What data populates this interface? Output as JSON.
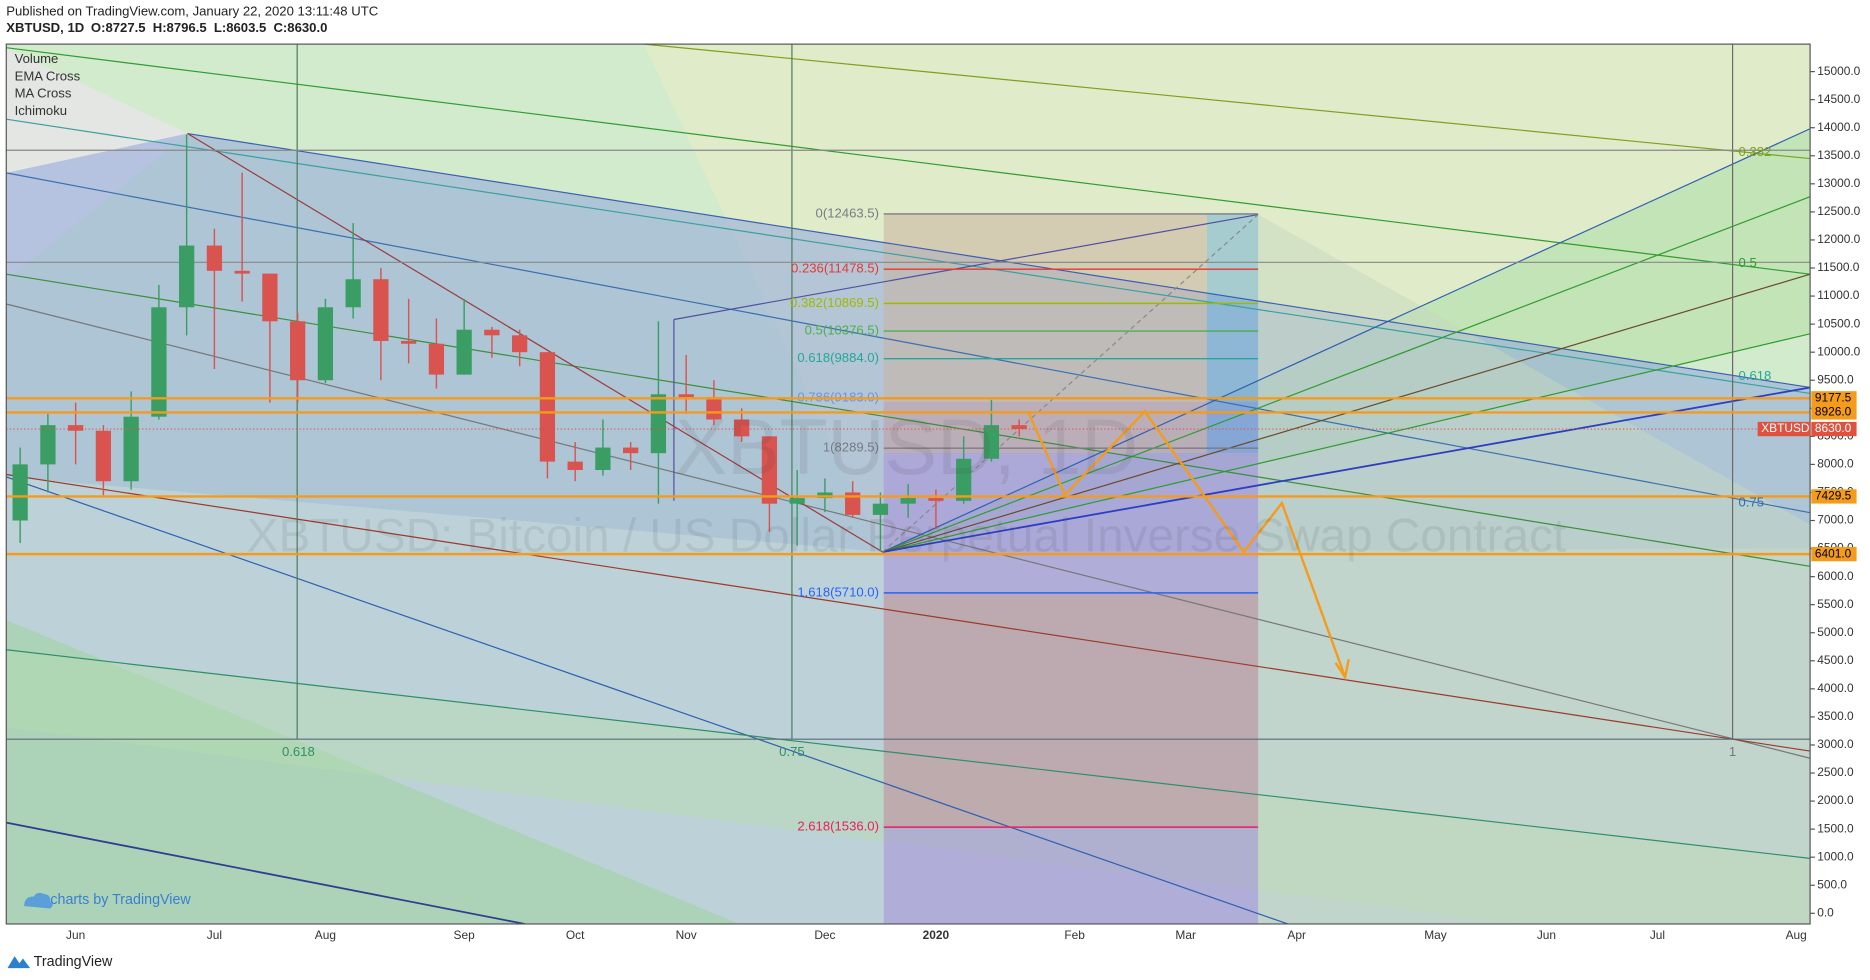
{
  "header": {
    "published": "Published on TradingView.com, January 22, 2020 13:11:48 UTC",
    "symbol": "XBTUSD, 1D",
    "ohlc": [
      "O:8727.5",
      "H:8796.5",
      "L:8603.5",
      "C:8630.0"
    ]
  },
  "footer": {
    "brand": "TradingView",
    "credit": "charts by TradingView"
  },
  "chart_data": {
    "type": "candlestick",
    "watermark": "XBTUSD, 1D",
    "watermark_subtitle": "XBTUSD: Bitcoin / US Dollar Perpetual Inverse Swap Contract",
    "indicators": [
      "Volume",
      "EMA Cross",
      "MA Cross",
      "Ichimoku"
    ],
    "categories": [
      null,
      null,
      "Jun",
      null,
      null,
      null,
      null,
      "Jul",
      null,
      null,
      null,
      "Aug",
      null,
      null,
      null,
      null,
      "Sep",
      null,
      null,
      null,
      "Oct",
      null,
      null,
      null,
      "Nov",
      null,
      null,
      null,
      null,
      "Dec",
      null,
      null,
      null,
      "2020",
      null,
      null,
      null,
      null,
      "Feb",
      null,
      null,
      null,
      "Mar",
      null,
      null,
      null,
      "Apr",
      null,
      null,
      null,
      null,
      "May",
      null,
      null,
      null,
      "Jun",
      null,
      null,
      null,
      "Jul",
      null,
      null,
      null,
      null,
      "Aug"
    ],
    "series": [
      {
        "name": "XBTUSD",
        "up_color": "#3a9e64",
        "down_color": "#d9534f",
        "open": [
          7000,
          8000,
          8700,
          8600,
          7700,
          8850,
          10800,
          11900,
          11450,
          11400,
          10550,
          9500,
          10800,
          11300,
          10200,
          10150,
          9600,
          10400,
          10300,
          10000,
          8050,
          7900,
          8300,
          8200,
          9250,
          9200,
          8800,
          8500,
          7300,
          7400,
          7500,
          7100,
          7300,
          7400,
          7350,
          8100,
          8700
        ],
        "high": [
          8300,
          8900,
          9100,
          8700,
          9300,
          11200,
          13880,
          12200,
          13200,
          11400,
          10700,
          10950,
          12300,
          11500,
          10950,
          10600,
          10950,
          10450,
          10400,
          10000,
          8400,
          8800,
          8400,
          10550,
          9950,
          9500,
          9000,
          8500,
          7900,
          7750,
          7700,
          7500,
          7650,
          7550,
          8500,
          9150,
          8800
        ],
        "low": [
          6600,
          7500,
          8000,
          7450,
          7550,
          8800,
          10300,
          9700,
          10900,
          9100,
          9100,
          9450,
          10600,
          9500,
          9800,
          9350,
          9600,
          9900,
          9750,
          7750,
          7700,
          7800,
          7900,
          7300,
          8900,
          8700,
          8400,
          6800,
          6550,
          7150,
          7050,
          6450,
          7050,
          6850,
          7300,
          8050,
          8500
        ],
        "close": [
          8000,
          8700,
          8600,
          7700,
          8850,
          10800,
          11900,
          11450,
          11400,
          10550,
          9500,
          10800,
          11300,
          10200,
          10150,
          9600,
          10400,
          10300,
          10000,
          8050,
          7900,
          8300,
          8200,
          9250,
          9200,
          8800,
          8500,
          7300,
          7400,
          7500,
          7100,
          7300,
          7400,
          7350,
          8100,
          8700,
          8630
        ]
      }
    ],
    "ylim": [
      -190,
      15490
    ],
    "yticks": [
      {
        "value": 0,
        "label": "0.0"
      },
      {
        "value": 500,
        "label": "500.0"
      },
      {
        "value": 1000,
        "label": "1000.0"
      },
      {
        "value": 1500,
        "label": "1500.0"
      },
      {
        "value": 2000,
        "label": "2000.0"
      },
      {
        "value": 2500,
        "label": "2500.0"
      },
      {
        "value": 3000,
        "label": "3000.0"
      },
      {
        "value": 3500,
        "label": "3500.0"
      },
      {
        "value": 4000,
        "label": "4000.0"
      },
      {
        "value": 4500,
        "label": "4500.0"
      },
      {
        "value": 5000,
        "label": "5000.0"
      },
      {
        "value": 5500,
        "label": "5500.0"
      },
      {
        "value": 6000,
        "label": "6000.0"
      },
      {
        "value": 6500,
        "label": "6500.0"
      },
      {
        "value": 7000,
        "label": "7000.0"
      },
      {
        "value": 7500,
        "label": "7500.0"
      },
      {
        "value": 8000,
        "label": "8000.0"
      },
      {
        "value": 8500,
        "label": "8500.0"
      },
      {
        "value": 9000,
        "label": "9000.0"
      },
      {
        "value": 9500,
        "label": "9500.0"
      },
      {
        "value": 10000,
        "label": "10000.0"
      },
      {
        "value": 10500,
        "label": "10500.0"
      },
      {
        "value": 11000,
        "label": "11000.0"
      },
      {
        "value": 11500,
        "label": "11500.0"
      },
      {
        "value": 12000,
        "label": "12000.0"
      },
      {
        "value": 12500,
        "label": "12500.0"
      },
      {
        "value": 13000,
        "label": "13000.0"
      },
      {
        "value": 13500,
        "label": "13500.0"
      },
      {
        "value": 14000,
        "label": "14000.0"
      },
      {
        "value": 14500,
        "label": "14500.0"
      },
      {
        "value": 15000,
        "label": "15000.0"
      }
    ],
    "fib_levels": [
      {
        "value": 12463.5,
        "label": "0(12463.5)",
        "color": "#787b86"
      },
      {
        "value": 11478.5,
        "label": "0.236(11478.5)",
        "color": "#e53935"
      },
      {
        "value": 10869.5,
        "label": "0.382(10869.5)",
        "color": "#9cbb00"
      },
      {
        "value": 10376.5,
        "label": "0.5(10376.5)",
        "color": "#4caf50"
      },
      {
        "value": 9884.0,
        "label": "0.618(9884.0)",
        "color": "#26a69a"
      },
      {
        "value": 9183.0,
        "label": "0.786(9183.0)",
        "color": "#6495ed"
      },
      {
        "value": 8289.5,
        "label": "1(8289.5)",
        "color": "#787b86"
      },
      {
        "value": 5710.0,
        "label": "1.618(5710.0)",
        "color": "#2962ff"
      },
      {
        "value": 1536.0,
        "label": "2.618(1536.0)",
        "color": "#e91e63"
      }
    ],
    "price_lines": [
      9177.5,
      {
        "value": 8926.0,
        "label": "8926.0"
      },
      7429.5,
      {
        "value": 6401.0,
        "label": "6401.0"
      }
    ],
    "price_line_color": "#f59b1c",
    "last_price": {
      "value": 8630.0,
      "label": "8630.0"
    },
    "last_price_color": "#e0523f",
    "fan_labels_right": [
      0.382,
      0.5,
      0.618,
      0.75
    ],
    "fan_labels_bottom": [
      0.618,
      0.75,
      1
    ]
  }
}
